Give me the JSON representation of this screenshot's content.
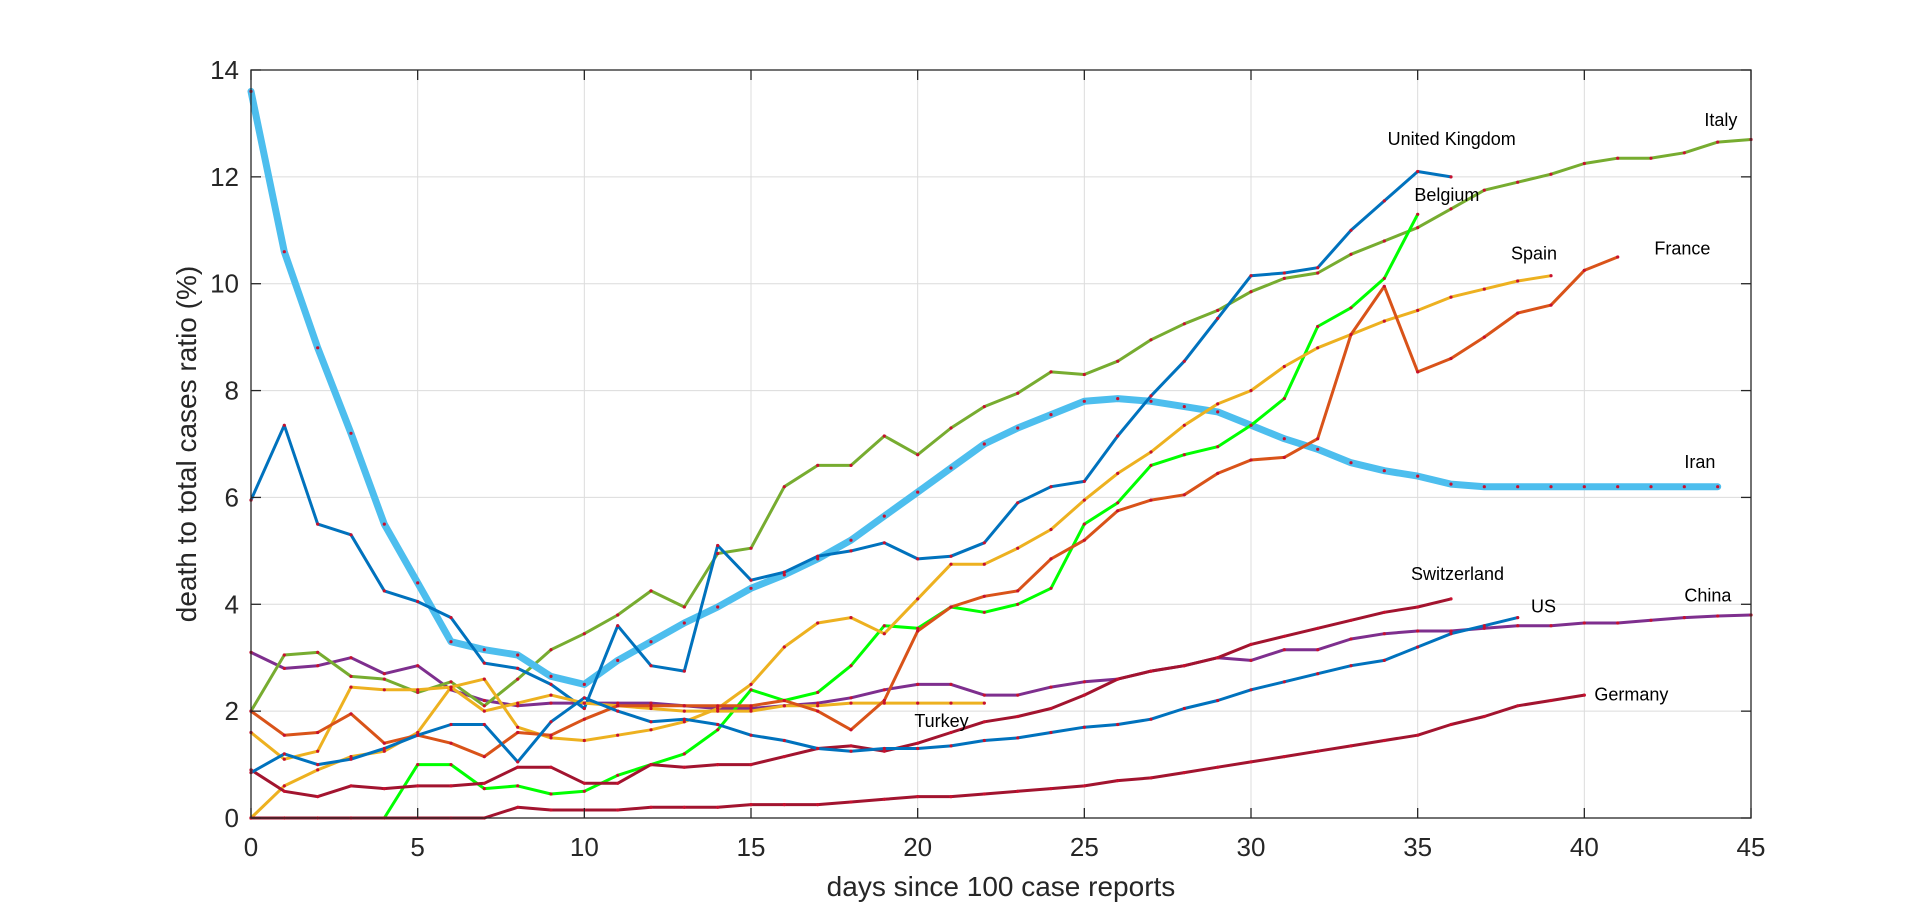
{
  "chart_data": {
    "type": "line",
    "title": "",
    "xlabel": "days since 100 case reports",
    "ylabel": "death to total cases ratio (%)",
    "xlim": [
      0,
      45
    ],
    "ylim": [
      0,
      14
    ],
    "xticks": [
      0,
      5,
      10,
      15,
      20,
      25,
      30,
      35,
      40,
      45
    ],
    "yticks": [
      0,
      2,
      4,
      6,
      8,
      10,
      12,
      14
    ],
    "grid": true,
    "legend": "none (labels placed at line ends)",
    "series": [
      {
        "name": "China",
        "color": "#7E2F8E",
        "width": 3,
        "x": [
          0,
          1,
          2,
          3,
          4,
          5,
          6,
          7,
          8,
          9,
          10,
          11,
          12,
          13,
          14,
          15,
          16,
          17,
          18,
          19,
          20,
          21,
          22,
          23,
          24,
          25,
          26,
          27,
          28,
          29,
          30,
          31,
          32,
          33,
          34,
          35,
          36,
          37,
          38,
          39,
          40,
          41,
          42,
          43,
          44,
          45
        ],
        "y": [
          3.1,
          2.8,
          2.85,
          3.0,
          2.7,
          2.85,
          2.4,
          2.2,
          2.1,
          2.15,
          2.15,
          2.15,
          2.15,
          2.1,
          2.05,
          2.05,
          2.1,
          2.15,
          2.25,
          2.4,
          2.5,
          2.5,
          2.3,
          2.3,
          2.45,
          2.55,
          2.6,
          2.75,
          2.85,
          3.0,
          2.95,
          3.15,
          3.15,
          3.35,
          3.45,
          3.5,
          3.5,
          3.55,
          3.6,
          3.6,
          3.65,
          3.65,
          3.7,
          3.75,
          3.78,
          3.8
        ]
      },
      {
        "name": "Italy",
        "color": "#77AC30",
        "width": 3,
        "x": [
          0,
          1,
          2,
          3,
          4,
          5,
          6,
          7,
          8,
          9,
          10,
          11,
          12,
          13,
          14,
          15,
          16,
          17,
          18,
          19,
          20,
          21,
          22,
          23,
          24,
          25,
          26,
          27,
          28,
          29,
          30,
          31,
          32,
          33,
          34,
          35,
          36,
          37,
          38,
          39,
          40,
          41,
          42,
          43,
          44,
          45
        ],
        "y": [
          2.0,
          3.05,
          3.1,
          2.65,
          2.6,
          2.35,
          2.55,
          2.1,
          2.6,
          3.15,
          3.45,
          3.8,
          4.25,
          3.95,
          4.95,
          5.05,
          6.2,
          6.6,
          6.6,
          7.15,
          6.8,
          7.3,
          7.7,
          7.95,
          8.35,
          8.3,
          8.55,
          8.95,
          9.25,
          9.5,
          9.85,
          10.1,
          10.2,
          10.55,
          10.8,
          11.05,
          11.4,
          11.75,
          11.9,
          12.05,
          12.25,
          12.35,
          12.35,
          12.45,
          12.65,
          12.7
        ]
      },
      {
        "name": "Iran",
        "color": "#4DBEEE",
        "width": 7,
        "x": [
          0,
          1,
          2,
          3,
          4,
          5,
          6,
          7,
          8,
          9,
          10,
          11,
          12,
          13,
          14,
          15,
          16,
          17,
          18,
          19,
          20,
          21,
          22,
          23,
          24,
          25,
          26,
          27,
          28,
          29,
          30,
          31,
          32,
          33,
          34,
          35,
          36,
          37,
          38,
          39,
          40,
          41,
          42,
          43,
          44
        ],
        "y": [
          13.6,
          10.6,
          8.8,
          7.2,
          5.5,
          4.4,
          3.3,
          3.15,
          3.05,
          2.65,
          2.5,
          2.95,
          3.3,
          3.65,
          3.95,
          4.3,
          4.55,
          4.85,
          5.2,
          5.65,
          6.1,
          6.55,
          7.0,
          7.3,
          7.55,
          7.8,
          7.85,
          7.8,
          7.7,
          7.6,
          7.35,
          7.1,
          6.9,
          6.65,
          6.5,
          6.4,
          6.25,
          6.2,
          6.2,
          6.2,
          6.2,
          6.2,
          6.2,
          6.2,
          6.2
        ]
      },
      {
        "name": "United Kingdom",
        "color": "#0072BD",
        "width": 3,
        "x": [
          0,
          1,
          2,
          3,
          4,
          5,
          6,
          7,
          8,
          9,
          10,
          11,
          12,
          13,
          14,
          15,
          16,
          17,
          18,
          19,
          20,
          21,
          22,
          23,
          24,
          25,
          26,
          27,
          28,
          29,
          30,
          31,
          32,
          33,
          34,
          35,
          36
        ],
        "y": [
          5.95,
          7.35,
          5.5,
          5.3,
          4.25,
          4.05,
          3.75,
          2.9,
          2.8,
          2.5,
          2.05,
          3.6,
          2.85,
          2.75,
          5.1,
          4.45,
          4.6,
          4.9,
          5.0,
          5.15,
          4.85,
          4.9,
          5.15,
          5.9,
          6.2,
          6.3,
          7.15,
          7.9,
          8.55,
          9.35,
          10.15,
          10.2,
          10.3,
          11.0,
          11.55,
          12.1,
          12.0
        ]
      },
      {
        "name": "Belgium",
        "color": "#00FF00",
        "width": 3,
        "x": [
          0,
          1,
          2,
          3,
          4,
          5,
          6,
          7,
          8,
          9,
          10,
          11,
          12,
          13,
          14,
          15,
          16,
          17,
          18,
          19,
          20,
          21,
          22,
          23,
          24,
          25,
          26,
          27,
          28,
          29,
          30,
          31,
          32,
          33,
          34,
          35
        ],
        "y": [
          0,
          0,
          0,
          0,
          0,
          1.0,
          1.0,
          0.55,
          0.6,
          0.45,
          0.5,
          0.8,
          1.0,
          1.2,
          1.65,
          2.4,
          2.2,
          2.35,
          2.85,
          3.6,
          3.55,
          3.95,
          3.85,
          4.0,
          4.3,
          5.5,
          5.9,
          6.6,
          6.8,
          6.95,
          7.35,
          7.85,
          9.2,
          9.55,
          10.1,
          11.3
        ]
      },
      {
        "name": "Spain",
        "color": "#EDB120",
        "width": 3,
        "x": [
          0,
          1,
          2,
          3,
          4,
          5,
          6,
          7,
          8,
          9,
          10,
          11,
          12,
          13,
          14,
          15,
          16,
          17,
          18,
          19,
          20,
          21,
          22,
          23,
          24,
          25,
          26,
          27,
          28,
          29,
          30,
          31,
          32,
          33,
          34,
          35,
          36,
          37,
          38,
          39
        ],
        "y": [
          0,
          0.6,
          0.9,
          1.15,
          1.25,
          1.6,
          2.45,
          2.6,
          1.7,
          1.5,
          1.45,
          1.55,
          1.65,
          1.8,
          2.05,
          2.5,
          3.2,
          3.65,
          3.75,
          3.45,
          4.1,
          4.75,
          4.75,
          5.05,
          5.4,
          5.95,
          6.45,
          6.85,
          7.35,
          7.75,
          8.0,
          8.45,
          8.8,
          9.05,
          9.3,
          9.5,
          9.75,
          9.9,
          10.05,
          10.15
        ]
      },
      {
        "name": "Turkey",
        "color": "#EDB120",
        "width": 3,
        "x": [
          0,
          1,
          2,
          3,
          4,
          5,
          6,
          7,
          8,
          9,
          10,
          11,
          12,
          13,
          14,
          15,
          16,
          17,
          18,
          19,
          20,
          21,
          22
        ],
        "y": [
          1.6,
          1.1,
          1.25,
          2.45,
          2.4,
          2.4,
          2.45,
          2.0,
          2.15,
          2.3,
          2.15,
          2.1,
          2.05,
          2.0,
          2.0,
          2.0,
          2.1,
          2.1,
          2.15,
          2.15,
          2.15,
          2.15,
          2.15
        ]
      },
      {
        "name": "France",
        "color": "#D95319",
        "width": 3,
        "x": [
          0,
          1,
          2,
          3,
          4,
          5,
          6,
          7,
          8,
          9,
          10,
          11,
          12,
          13,
          14,
          15,
          16,
          17,
          18,
          19,
          20,
          21,
          22,
          23,
          24,
          25,
          26,
          27,
          28,
          29,
          30,
          31,
          32,
          33,
          34,
          35,
          36,
          37,
          38,
          39,
          40,
          41
        ],
        "y": [
          2.0,
          1.55,
          1.6,
          1.95,
          1.4,
          1.55,
          1.4,
          1.15,
          1.6,
          1.55,
          1.85,
          2.1,
          2.1,
          2.1,
          2.1,
          2.1,
          2.2,
          2.0,
          1.65,
          2.2,
          3.5,
          3.95,
          4.15,
          4.25,
          4.85,
          5.2,
          5.75,
          5.95,
          6.05,
          6.45,
          6.7,
          6.75,
          7.1,
          9.05,
          9.95,
          8.35,
          8.6,
          9.0,
          9.45,
          9.6,
          10.25,
          10.5
        ]
      },
      {
        "name": "Switzerland",
        "color": "#A2142F",
        "width": 3,
        "x": [
          0,
          1,
          2,
          3,
          4,
          5,
          6,
          7,
          8,
          9,
          10,
          11,
          12,
          13,
          14,
          15,
          16,
          17,
          18,
          19,
          20,
          21,
          22,
          23,
          24,
          25,
          26,
          27,
          28,
          29,
          30,
          31,
          32,
          33,
          34,
          35,
          36
        ],
        "y": [
          0.9,
          0.5,
          0.4,
          0.6,
          0.55,
          0.6,
          0.6,
          0.65,
          0.95,
          0.95,
          0.65,
          0.65,
          1.0,
          0.95,
          1.0,
          1.0,
          1.15,
          1.3,
          1.35,
          1.25,
          1.4,
          1.6,
          1.8,
          1.9,
          2.05,
          2.3,
          2.6,
          2.75,
          2.85,
          3.0,
          3.25,
          3.4,
          3.55,
          3.7,
          3.85,
          3.95,
          4.1
        ]
      },
      {
        "name": "US",
        "color": "#0072BD",
        "width": 3,
        "x": [
          0,
          1,
          2,
          3,
          4,
          5,
          6,
          7,
          8,
          9,
          10,
          11,
          12,
          13,
          14,
          15,
          16,
          17,
          18,
          19,
          20,
          21,
          22,
          23,
          24,
          25,
          26,
          27,
          28,
          29,
          30,
          31,
          32,
          33,
          34,
          35,
          36,
          37,
          38
        ],
        "y": [
          0.85,
          1.2,
          1.0,
          1.1,
          1.3,
          1.55,
          1.75,
          1.75,
          1.05,
          1.8,
          2.25,
          2.0,
          1.8,
          1.85,
          1.75,
          1.55,
          1.45,
          1.3,
          1.25,
          1.3,
          1.3,
          1.35,
          1.45,
          1.5,
          1.6,
          1.7,
          1.75,
          1.85,
          2.05,
          2.2,
          2.4,
          2.55,
          2.7,
          2.85,
          2.95,
          3.2,
          3.45,
          3.6,
          3.75
        ]
      },
      {
        "name": "Germany",
        "color": "#A2142F",
        "width": 3,
        "x": [
          0,
          1,
          2,
          3,
          4,
          5,
          6,
          7,
          8,
          9,
          10,
          11,
          12,
          13,
          14,
          15,
          16,
          17,
          18,
          19,
          20,
          21,
          22,
          23,
          24,
          25,
          26,
          27,
          28,
          29,
          30,
          31,
          32,
          33,
          34,
          35,
          36,
          37,
          38,
          39,
          40
        ],
        "y": [
          0,
          0,
          0,
          0,
          0,
          0,
          0,
          0,
          0.2,
          0.15,
          0.15,
          0.15,
          0.2,
          0.2,
          0.2,
          0.25,
          0.25,
          0.25,
          0.3,
          0.35,
          0.4,
          0.4,
          0.45,
          0.5,
          0.55,
          0.6,
          0.7,
          0.75,
          0.85,
          0.95,
          1.05,
          1.15,
          1.25,
          1.35,
          1.45,
          1.55,
          1.75,
          1.9,
          2.1,
          2.2,
          2.3
        ]
      }
    ],
    "annotations": [
      {
        "text": "Italy",
        "series": "Italy",
        "x": 43.6,
        "y": 12.95
      },
      {
        "text": "United Kingdom",
        "series": "United Kingdom",
        "x": 34.1,
        "y": 12.6
      },
      {
        "text": "Belgium",
        "series": "Belgium",
        "x": 34.9,
        "y": 11.55
      },
      {
        "text": "Spain",
        "series": "Spain",
        "x": 37.8,
        "y": 10.45
      },
      {
        "text": "France",
        "series": "France",
        "x": 42.1,
        "y": 10.55
      },
      {
        "text": "Iran",
        "series": "Iran",
        "x": 43.0,
        "y": 6.55
      },
      {
        "text": "Switzerland",
        "series": "Switzerland",
        "x": 34.8,
        "y": 4.45
      },
      {
        "text": "US",
        "series": "US",
        "x": 38.4,
        "y": 3.85
      },
      {
        "text": "China",
        "series": "China",
        "x": 43.0,
        "y": 4.05
      },
      {
        "text": "Turkey",
        "series": "Turkey",
        "x": 19.9,
        "y": 1.7
      },
      {
        "text": "Germany",
        "series": "Germany",
        "x": 40.3,
        "y": 2.2
      }
    ]
  }
}
